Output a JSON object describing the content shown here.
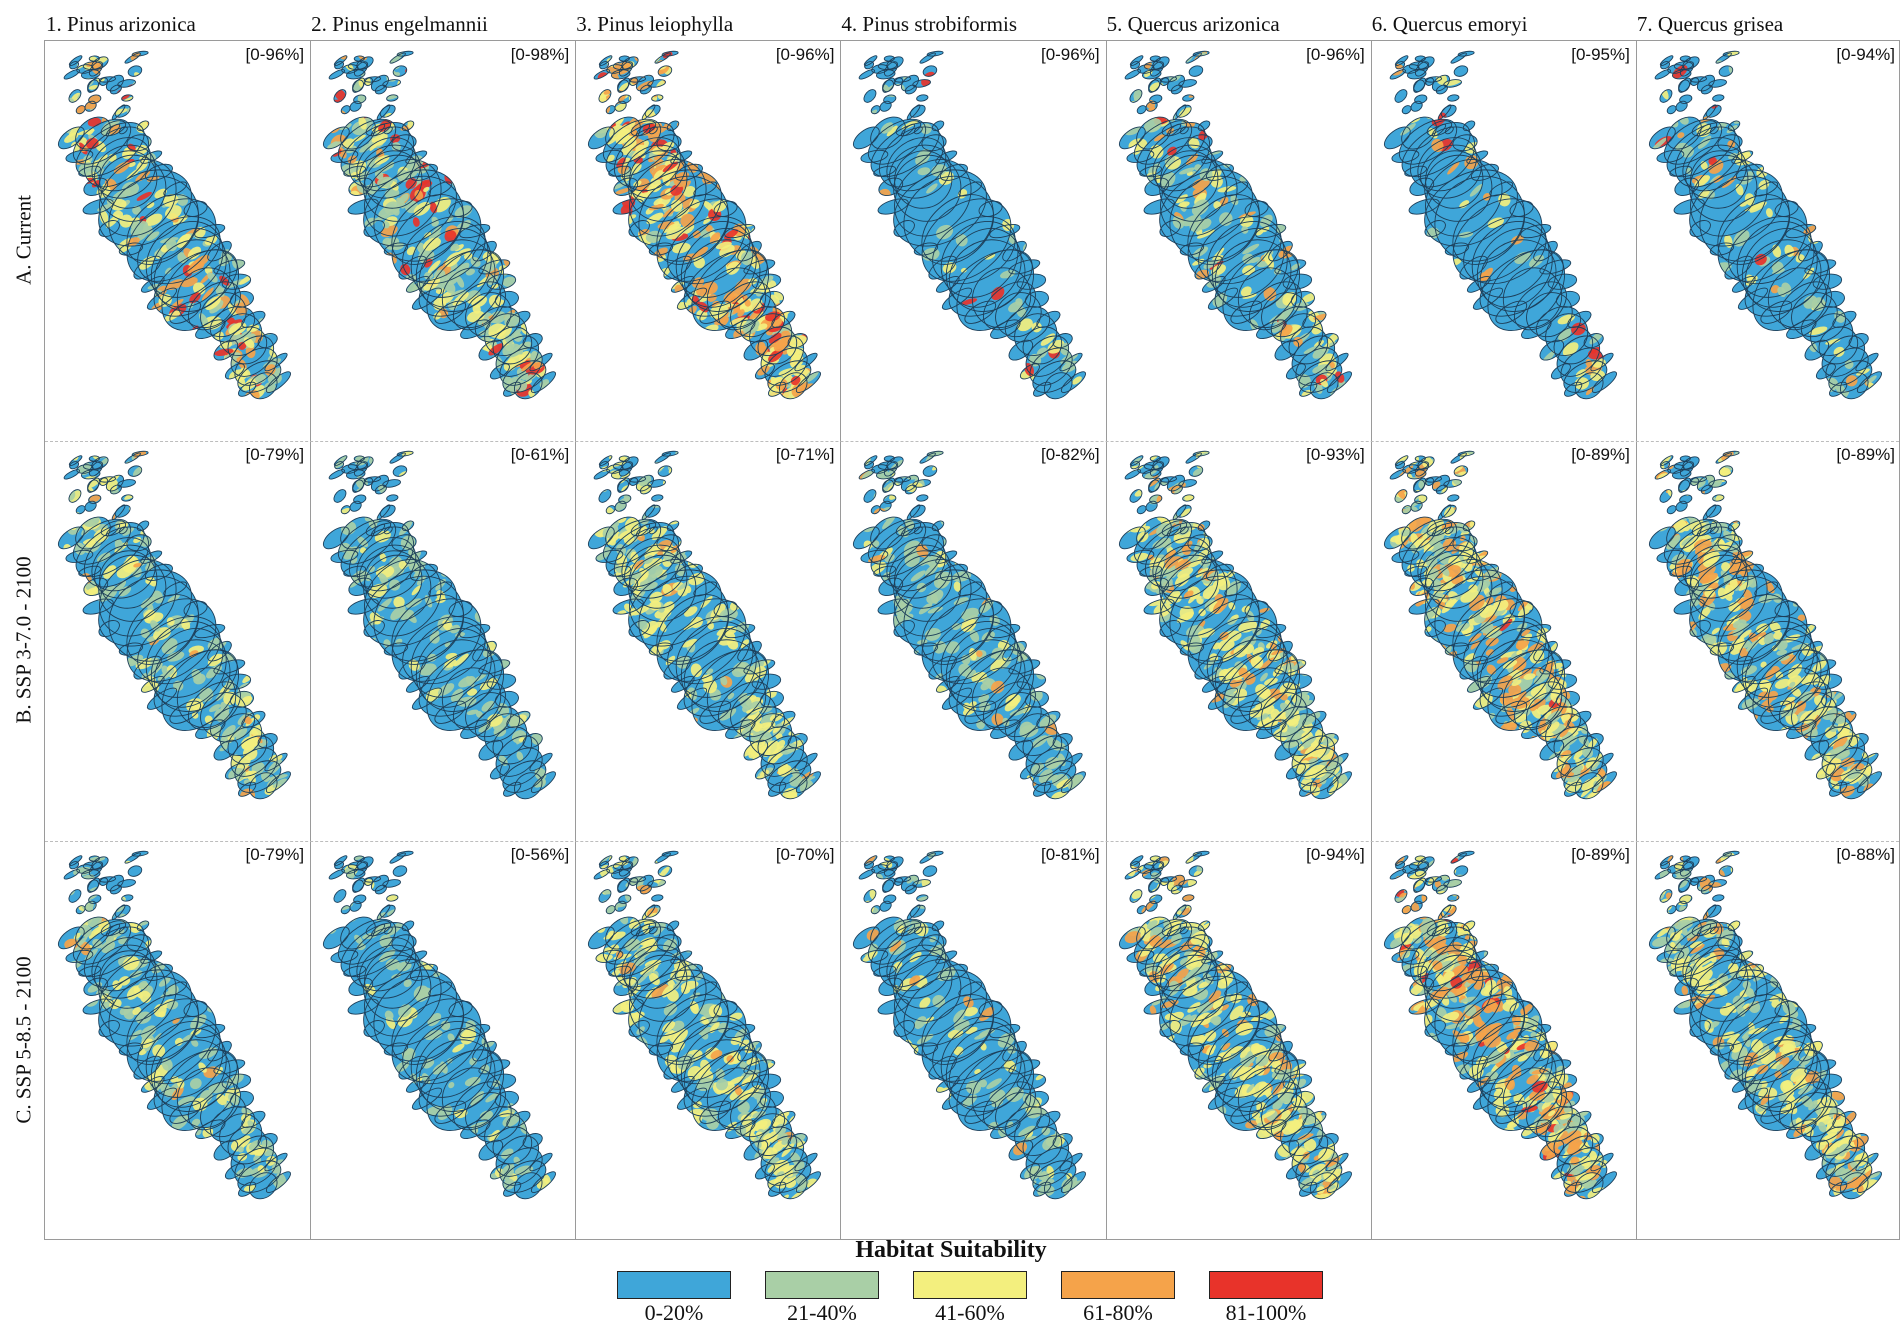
{
  "columns": [
    {
      "label": "1. Pinus arizonica"
    },
    {
      "label": "2. Pinus engelmannii"
    },
    {
      "label": "3. Pinus leiophylla"
    },
    {
      "label": "4. Pinus strobiformis"
    },
    {
      "label": "5. Quercus arizonica"
    },
    {
      "label": "6. Quercus emoryi"
    },
    {
      "label": "7. Quercus grisea"
    }
  ],
  "rows": [
    {
      "label": "A. Current"
    },
    {
      "label": "B. SSP 3-7.0 - 2100"
    },
    {
      "label": "C. SSP 5-8.5 - 2100"
    }
  ],
  "ranges": [
    [
      "[0-96%]",
      "[0-98%]",
      "[0-96%]",
      "[0-96%]",
      "[0-96%]",
      "[0-95%]",
      "[0-94%]"
    ],
    [
      "[0-79%]",
      "[0-61%]",
      "[0-71%]",
      "[0-82%]",
      "[0-93%]",
      "[0-89%]",
      "[0-89%]"
    ],
    [
      "[0-79%]",
      "[0-56%]",
      "[0-70%]",
      "[0-81%]",
      "[0-94%]",
      "[0-89%]",
      "[0-88%]"
    ]
  ],
  "suitability_weights": [
    [
      [
        0.45,
        0.2,
        0.2,
        0.09,
        0.06
      ],
      [
        0.42,
        0.3,
        0.18,
        0.05,
        0.05
      ],
      [
        0.12,
        0.1,
        0.4,
        0.32,
        0.06
      ],
      [
        0.88,
        0.06,
        0.04,
        0.01,
        0.01
      ],
      [
        0.62,
        0.16,
        0.14,
        0.06,
        0.02
      ],
      [
        0.9,
        0.02,
        0.04,
        0.03,
        0.01
      ],
      [
        0.8,
        0.08,
        0.07,
        0.04,
        0.01
      ]
    ],
    [
      [
        0.6,
        0.22,
        0.16,
        0.02,
        0.0
      ],
      [
        0.74,
        0.2,
        0.06,
        0.0,
        0.0
      ],
      [
        0.4,
        0.2,
        0.38,
        0.02,
        0.0
      ],
      [
        0.68,
        0.22,
        0.08,
        0.02,
        0.0
      ],
      [
        0.28,
        0.24,
        0.33,
        0.15,
        0.0
      ],
      [
        0.12,
        0.22,
        0.38,
        0.25,
        0.03
      ],
      [
        0.28,
        0.22,
        0.35,
        0.15,
        0.0
      ]
    ],
    [
      [
        0.64,
        0.2,
        0.14,
        0.02,
        0.0
      ],
      [
        0.78,
        0.18,
        0.04,
        0.0,
        0.0
      ],
      [
        0.42,
        0.2,
        0.36,
        0.02,
        0.0
      ],
      [
        0.72,
        0.18,
        0.08,
        0.02,
        0.0
      ],
      [
        0.26,
        0.24,
        0.35,
        0.15,
        0.0
      ],
      [
        0.1,
        0.22,
        0.36,
        0.28,
        0.04
      ],
      [
        0.3,
        0.24,
        0.34,
        0.12,
        0.0
      ]
    ]
  ],
  "legend": {
    "title": "Habitat Suitability",
    "items": [
      {
        "label": "0-20%",
        "color": "#3fa6d9"
      },
      {
        "label": "21-40%",
        "color": "#a9cfa6"
      },
      {
        "label": "41-60%",
        "color": "#f3ef7e"
      },
      {
        "label": "61-80%",
        "color": "#f5a34a"
      },
      {
        "label": "81-100%",
        "color": "#e8332a"
      }
    ]
  }
}
